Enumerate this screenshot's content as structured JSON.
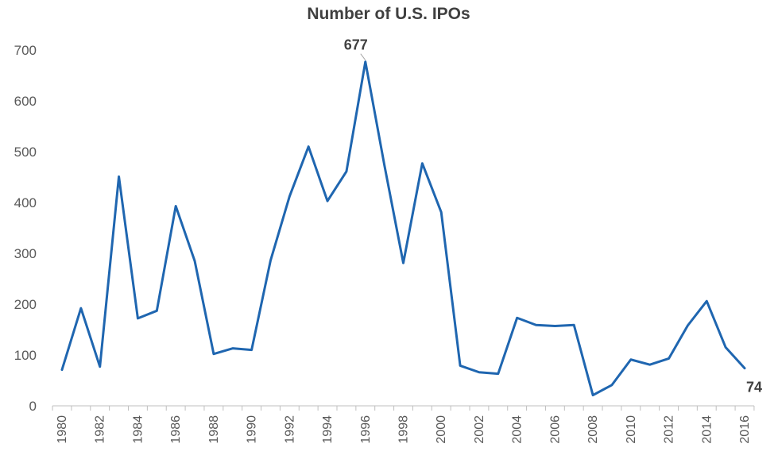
{
  "chart_data": {
    "type": "line",
    "title": "Number of U.S. IPOs",
    "xlabel": "",
    "ylabel": "",
    "ylim": [
      0,
      700
    ],
    "yticks": [
      0,
      100,
      200,
      300,
      400,
      500,
      600,
      700
    ],
    "grid": false,
    "legend": "none",
    "line_color": "#1f66b0",
    "x": [
      1980,
      1981,
      1982,
      1983,
      1984,
      1985,
      1986,
      1987,
      1988,
      1989,
      1990,
      1991,
      1992,
      1993,
      1994,
      1995,
      1996,
      1997,
      1998,
      1999,
      2000,
      2001,
      2002,
      2003,
      2004,
      2005,
      2006,
      2007,
      2008,
      2009,
      2010,
      2011,
      2012,
      2013,
      2014,
      2015,
      2016
    ],
    "xtick_labels": [
      "1980",
      "1982",
      "1984",
      "1986",
      "1988",
      "1990",
      "1992",
      "1994",
      "1996",
      "1998",
      "2000",
      "2002",
      "2004",
      "2006",
      "2008",
      "2010",
      "2012",
      "2014",
      "2016"
    ],
    "series": [
      {
        "values": [
          71,
          192,
          77,
          451,
          172,
          187,
          393,
          285,
          102,
          113,
          110,
          286,
          412,
          510,
          403,
          461,
          677,
          474,
          281,
          477,
          381,
          79,
          66,
          63,
          173,
          159,
          157,
          159,
          21,
          41,
          91,
          81,
          93,
          158,
          206,
          115,
          74
        ]
      }
    ],
    "annotations": [
      {
        "x": 1996,
        "value": 677,
        "text": "677"
      },
      {
        "x": 2016,
        "value": 74,
        "text": "74"
      }
    ]
  }
}
